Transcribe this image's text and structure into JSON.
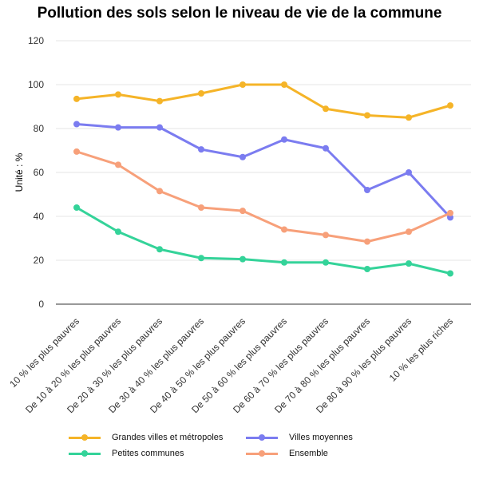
{
  "chart_data": {
    "type": "line",
    "title": "Pollution des sols selon le niveau de vie de la commune",
    "xlabel": "",
    "ylabel": "Unité : %",
    "ylim": [
      0,
      120
    ],
    "yticks": [
      0,
      20,
      40,
      60,
      80,
      100,
      120
    ],
    "grid": true,
    "legend_position": "bottom",
    "categories": [
      "10 % les plus pauvres",
      "De 10 à 20 % les plus pauvres",
      "De 20 à 30 % les plus pauvres",
      "De 30 à 40 % les plus pauvres",
      "De 40 à 50 % les plus pauvres",
      "De 50 à 60 % les plus pauvres",
      "De 60 à 70 % les plus pauvres",
      "De 70 à 80 % les plus pauvres",
      "De 80 à 90 % les plus pauvres",
      "10 % les plus riches"
    ],
    "series": [
      {
        "name": "Grandes villes et métropoles",
        "color": "#f5b428",
        "values": [
          93.5,
          95.5,
          92.5,
          96,
          100,
          100,
          89,
          86,
          85,
          90.5
        ]
      },
      {
        "name": "Villes moyennes",
        "color": "#7b7cf0",
        "values": [
          82,
          80.5,
          80.5,
          70.5,
          67,
          75,
          71,
          52,
          60,
          39.5
        ]
      },
      {
        "name": "Petites communes",
        "color": "#34d399",
        "values": [
          44,
          33,
          25,
          21,
          20.5,
          19,
          19,
          16,
          18.5,
          14
        ]
      },
      {
        "name": "Ensemble",
        "color": "#f7a07a",
        "values": [
          69.5,
          63.5,
          51.5,
          44,
          42.5,
          34,
          31.5,
          28.5,
          33,
          41.5
        ]
      }
    ]
  }
}
